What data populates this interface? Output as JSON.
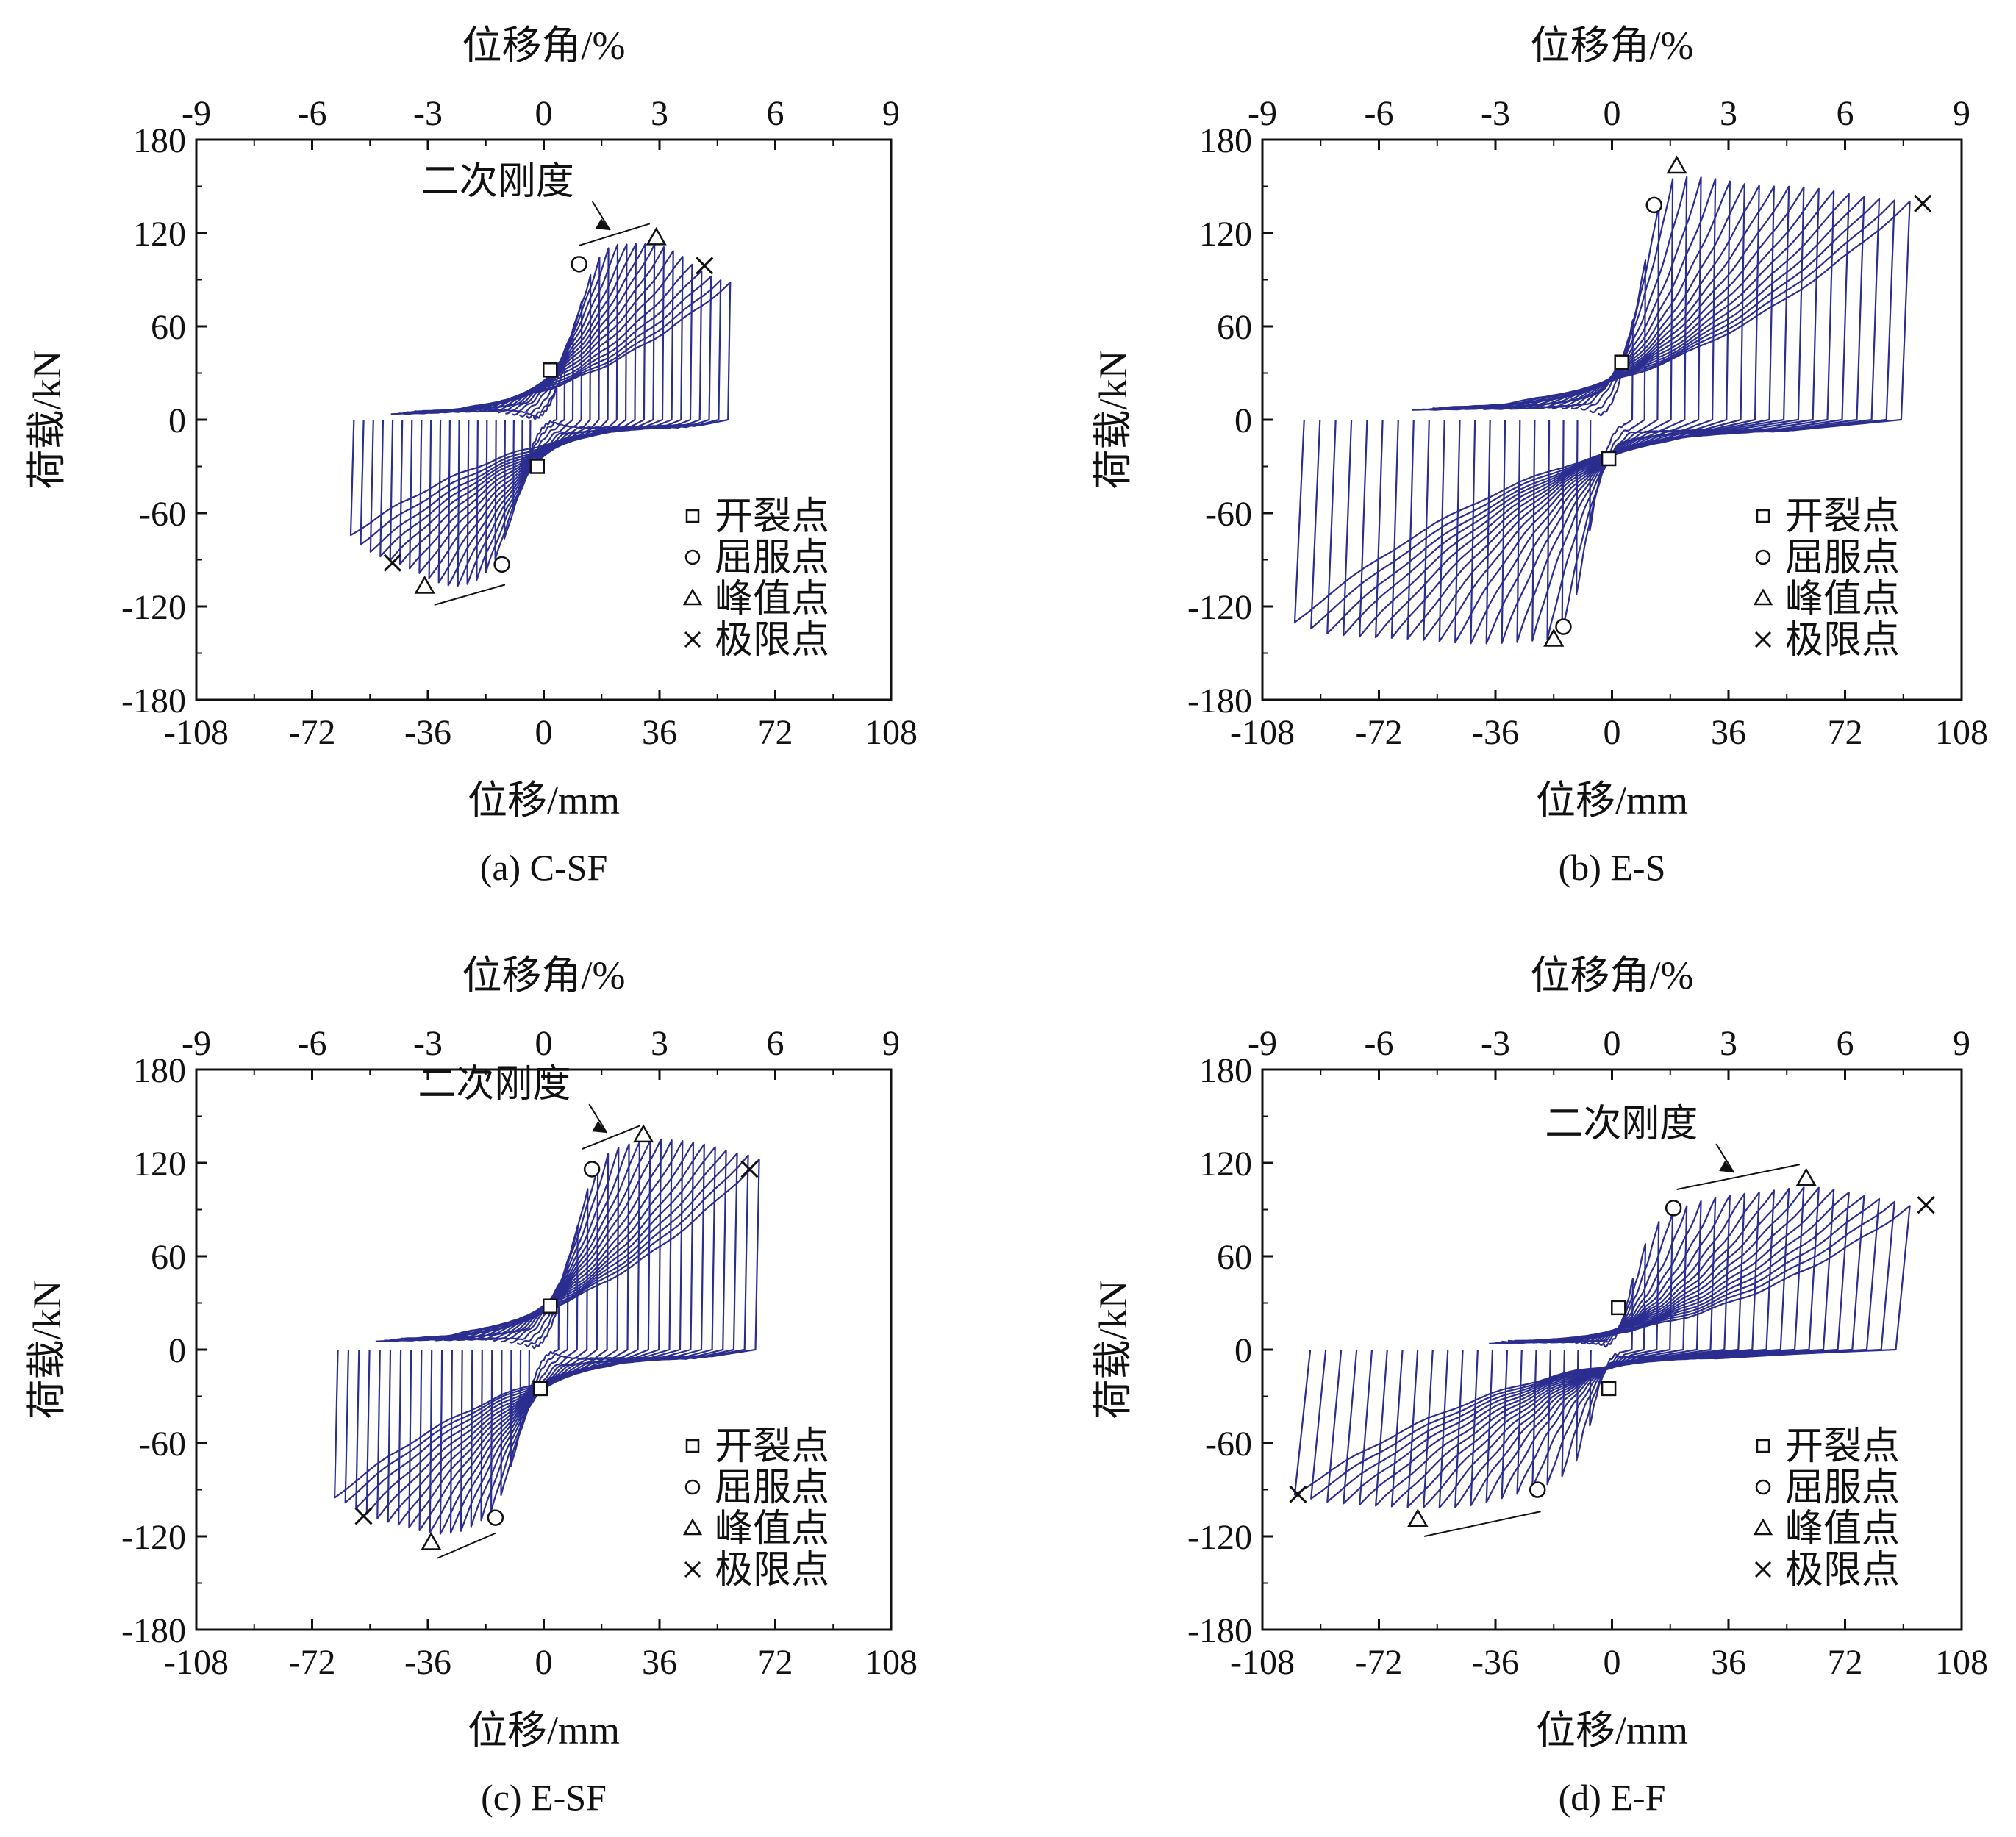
{
  "figure": {
    "curve_color": "#2b2d8f",
    "legend": [
      {
        "marker": "square",
        "label": "开裂点"
      },
      {
        "marker": "circle",
        "label": "屈服点"
      },
      {
        "marker": "triangle",
        "label": "峰值点"
      },
      {
        "marker": "cross",
        "label": "极限点"
      }
    ]
  },
  "chart_data": [
    {
      "id": "a",
      "type": "line",
      "caption": "(a) C-SF",
      "xlabel": "位移/mm",
      "ylabel": "荷载/kN",
      "x2label": "位移角/%",
      "xlim": [
        -108,
        108
      ],
      "ylim": [
        -180,
        180
      ],
      "x2lim": [
        -9,
        9
      ],
      "xticks": [
        "-108",
        "-72",
        "-36",
        "0",
        "36",
        "72",
        "108"
      ],
      "yticks": [
        "-180",
        "-120",
        "-60",
        "0",
        "60",
        "120",
        "180"
      ],
      "x2ticks": [
        "-9",
        "-6",
        "-3",
        "0",
        "3",
        "6",
        "9"
      ],
      "hysteresis": {
        "pos": [
          [
            4,
            20
          ],
          [
            6,
            30
          ],
          [
            8,
            45
          ],
          [
            10,
            62
          ],
          [
            12,
            78
          ],
          [
            14,
            90
          ],
          [
            16,
            100
          ],
          [
            19,
            108
          ],
          [
            22,
            112
          ],
          [
            26,
            113
          ],
          [
            30,
            114
          ],
          [
            34,
            113
          ],
          [
            38,
            110
          ],
          [
            42,
            106
          ],
          [
            46,
            100
          ],
          [
            50,
            95
          ],
          [
            55,
            90
          ],
          [
            58,
            88
          ]
        ],
        "neg": [
          [
            -4,
            -20
          ],
          [
            -6,
            -32
          ],
          [
            -8,
            -48
          ],
          [
            -10,
            -62
          ],
          [
            -12,
            -76
          ],
          [
            -14,
            -86
          ],
          [
            -16,
            -94
          ],
          [
            -19,
            -100
          ],
          [
            -22,
            -104
          ],
          [
            -26,
            -106
          ],
          [
            -30,
            -106
          ],
          [
            -34,
            -104
          ],
          [
            -38,
            -100
          ],
          [
            -42,
            -96
          ],
          [
            -46,
            -92
          ],
          [
            -50,
            -88
          ],
          [
            -54,
            -84
          ],
          [
            -58,
            -78
          ],
          [
            -60,
            -74
          ]
        ],
        "residual_pos": 52,
        "residual_neg": -50
      },
      "points": {
        "cracking": [
          [
            2,
            32
          ],
          [
            -2,
            -30
          ]
        ],
        "yield": [
          [
            11,
            100
          ],
          [
            -13,
            -93
          ]
        ],
        "peak": [
          [
            35,
            117
          ],
          [
            -37,
            -107
          ]
        ],
        "ultimate": [
          [
            50,
            99
          ],
          [
            -47,
            -92
          ]
        ]
      },
      "annotation": {
        "text": "二次刚度",
        "pos_segment": [
          [
            11,
            112
          ],
          [
            33,
            126
          ]
        ],
        "neg_segment": [
          [
            -34,
            -119
          ],
          [
            -12,
            -106
          ]
        ]
      },
      "grid": false,
      "legend_position": "bottom-right"
    },
    {
      "id": "b",
      "type": "line",
      "caption": "(b) E-S",
      "xlabel": "位移/mm",
      "ylabel": "荷载/kN",
      "x2label": "位移角/%",
      "xlim": [
        -108,
        108
      ],
      "ylim": [
        -180,
        180
      ],
      "x2lim": [
        -9,
        9
      ],
      "xticks": [
        "-108",
        "-72",
        "-36",
        "0",
        "36",
        "72",
        "108"
      ],
      "yticks": [
        "-180",
        "-120",
        "-60",
        "0",
        "60",
        "120",
        "180"
      ],
      "x2ticks": [
        "-9",
        "-6",
        "-3",
        "0",
        "3",
        "6",
        "9"
      ],
      "hysteresis": {
        "pos": [
          [
            4,
            40
          ],
          [
            6,
            60
          ],
          [
            8,
            80
          ],
          [
            10,
            100
          ],
          [
            12,
            120
          ],
          [
            14,
            136
          ],
          [
            16,
            148
          ],
          [
            18,
            155
          ],
          [
            22,
            156
          ],
          [
            28,
            155
          ],
          [
            40,
            152
          ],
          [
            55,
            150
          ],
          [
            70,
            146
          ],
          [
            85,
            142
          ],
          [
            92,
            140
          ]
        ],
        "neg": [
          [
            -4,
            -40
          ],
          [
            -6,
            -62
          ],
          [
            -8,
            -84
          ],
          [
            -10,
            -104
          ],
          [
            -12,
            -122
          ],
          [
            -14,
            -134
          ],
          [
            -16,
            -140
          ],
          [
            -20,
            -142
          ],
          [
            -30,
            -143
          ],
          [
            -45,
            -143
          ],
          [
            -60,
            -142
          ],
          [
            -75,
            -140
          ],
          [
            -90,
            -136
          ],
          [
            -96,
            -131
          ],
          [
            -98,
            -130
          ]
        ],
        "residual_pos": 62,
        "residual_neg": -65
      },
      "points": {
        "cracking": [
          [
            3,
            37
          ],
          [
            -1,
            -25
          ]
        ],
        "yield": [
          [
            13,
            138
          ],
          [
            -15,
            -133
          ]
        ],
        "peak": [
          [
            20,
            163
          ],
          [
            -18,
            -141
          ]
        ],
        "ultimate": [
          [
            96,
            139
          ]
        ]
      },
      "annotation": null,
      "grid": false,
      "legend_position": "bottom-right"
    },
    {
      "id": "c",
      "type": "line",
      "caption": "(c) E-SF",
      "xlabel": "位移/mm",
      "ylabel": "荷载/kN",
      "x2label": "位移角/%",
      "xlim": [
        -108,
        108
      ],
      "ylim": [
        -180,
        180
      ],
      "x2lim": [
        -9,
        9
      ],
      "xticks": [
        "-108",
        "-72",
        "-36",
        "0",
        "36",
        "72",
        "108"
      ],
      "yticks": [
        "-180",
        "-120",
        "-60",
        "0",
        "60",
        "120",
        "180"
      ],
      "x2ticks": [
        "-9",
        "-6",
        "-3",
        "0",
        "3",
        "6",
        "9"
      ],
      "hysteresis": {
        "pos": [
          [
            4,
            25
          ],
          [
            6,
            40
          ],
          [
            8,
            58
          ],
          [
            10,
            76
          ],
          [
            12,
            92
          ],
          [
            14,
            106
          ],
          [
            16,
            116
          ],
          [
            19,
            124
          ],
          [
            24,
            130
          ],
          [
            30,
            134
          ],
          [
            36,
            136
          ],
          [
            42,
            134
          ],
          [
            48,
            132
          ],
          [
            54,
            130
          ],
          [
            60,
            127
          ],
          [
            64,
            125
          ],
          [
            67,
            122
          ]
        ],
        "neg": [
          [
            -4,
            -25
          ],
          [
            -6,
            -40
          ],
          [
            -8,
            -58
          ],
          [
            -10,
            -74
          ],
          [
            -12,
            -88
          ],
          [
            -14,
            -98
          ],
          [
            -17,
            -106
          ],
          [
            -21,
            -112
          ],
          [
            -26,
            -116
          ],
          [
            -32,
            -118
          ],
          [
            -38,
            -117
          ],
          [
            -44,
            -114
          ],
          [
            -50,
            -110
          ],
          [
            -56,
            -104
          ],
          [
            -60,
            -99
          ],
          [
            -65,
            -95
          ]
        ],
        "residual_pos": 55,
        "residual_neg": -55
      },
      "points": {
        "cracking": [
          [
            2,
            28
          ],
          [
            -1,
            -25
          ]
        ],
        "yield": [
          [
            15,
            116
          ],
          [
            -15,
            -108
          ]
        ],
        "peak": [
          [
            31,
            138
          ],
          [
            -35,
            -124
          ]
        ],
        "ultimate": [
          [
            64,
            116
          ],
          [
            -56,
            -107
          ]
        ]
      },
      "annotation": {
        "text": "二次刚度",
        "pos_segment": [
          [
            12,
            129
          ],
          [
            30,
            144
          ]
        ],
        "neg_segment": [
          [
            -33,
            -134
          ],
          [
            -15,
            -118
          ]
        ]
      },
      "grid": false,
      "legend_position": "bottom-right"
    },
    {
      "id": "d",
      "type": "line",
      "caption": "(d) E-F",
      "xlabel": "位移/mm",
      "ylabel": "荷载/kN",
      "x2label": "位移角/%",
      "xlim": [
        -108,
        108
      ],
      "ylim": [
        -180,
        180
      ],
      "x2lim": [
        -9,
        9
      ],
      "xticks": [
        "-108",
        "-72",
        "-36",
        "0",
        "36",
        "72",
        "108"
      ],
      "yticks": [
        "-180",
        "-120",
        "-60",
        "0",
        "60",
        "120",
        "180"
      ],
      "x2ticks": [
        "-9",
        "-6",
        "-3",
        "0",
        "3",
        "6",
        "9"
      ],
      "hysteresis": {
        "pos": [
          [
            3,
            20
          ],
          [
            5,
            35
          ],
          [
            7,
            50
          ],
          [
            9,
            62
          ],
          [
            11,
            72
          ],
          [
            13,
            80
          ],
          [
            16,
            86
          ],
          [
            20,
            90
          ],
          [
            26,
            94
          ],
          [
            34,
            98
          ],
          [
            42,
            101
          ],
          [
            50,
            103
          ],
          [
            58,
            104
          ],
          [
            66,
            103
          ],
          [
            74,
            101
          ],
          [
            82,
            98
          ],
          [
            88,
            95
          ],
          [
            92,
            92
          ]
        ],
        "neg": [
          [
            -3,
            -20
          ],
          [
            -5,
            -35
          ],
          [
            -7,
            -50
          ],
          [
            -9,
            -62
          ],
          [
            -11,
            -72
          ],
          [
            -14,
            -80
          ],
          [
            -18,
            -86
          ],
          [
            -24,
            -90
          ],
          [
            -32,
            -94
          ],
          [
            -40,
            -98
          ],
          [
            -48,
            -101
          ],
          [
            -56,
            -102
          ],
          [
            -64,
            -102
          ],
          [
            -72,
            -101
          ],
          [
            -80,
            -99
          ],
          [
            -88,
            -97
          ],
          [
            -96,
            -94
          ],
          [
            -98,
            -93
          ]
        ],
        "residual_pos": 40,
        "residual_neg": -40
      },
      "points": {
        "cracking": [
          [
            2,
            27
          ],
          [
            -1,
            -25
          ]
        ],
        "yield": [
          [
            19,
            91
          ],
          [
            -23,
            -90
          ]
        ],
        "peak": [
          [
            60,
            110
          ],
          [
            -60,
            -109
          ]
        ],
        "ultimate": [
          [
            97,
            93
          ],
          [
            -97,
            -93
          ]
        ]
      },
      "annotation": {
        "text": "二次刚度",
        "pos_segment": [
          [
            20,
            103
          ],
          [
            58,
            119
          ]
        ],
        "neg_segment": [
          [
            -58,
            -120
          ],
          [
            -22,
            -104
          ]
        ]
      },
      "grid": false,
      "legend_position": "bottom-right"
    }
  ]
}
